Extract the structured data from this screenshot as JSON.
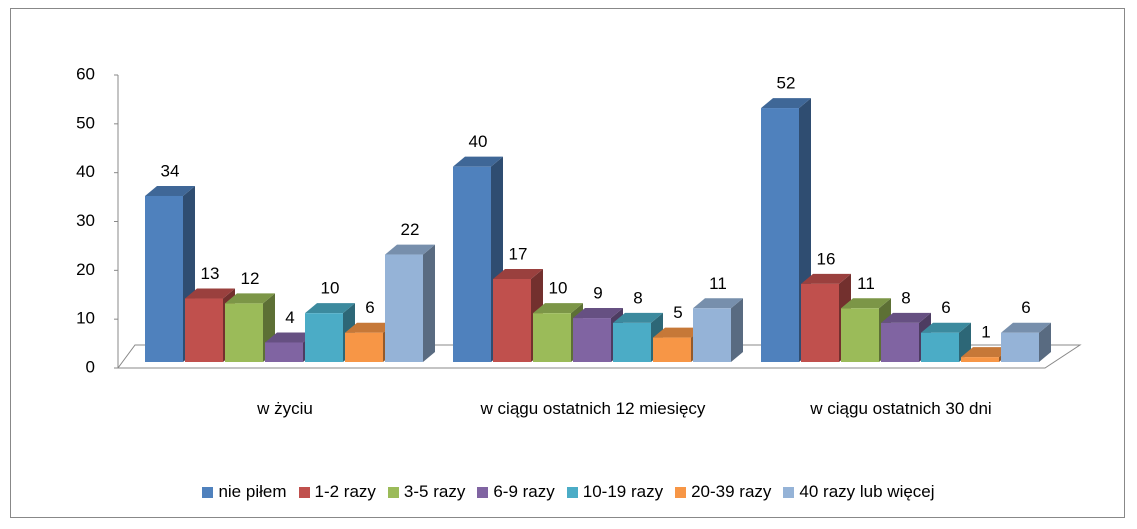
{
  "chart_data": {
    "type": "bar3d",
    "categories": [
      "w życiu",
      "w ciągu ostatnich 12 miesięcy",
      "w ciągu ostatnich 30 dni"
    ],
    "series": [
      {
        "name": "nie piłem",
        "color": "#4f81bd",
        "values": [
          34,
          40,
          52
        ]
      },
      {
        "name": "1-2 razy",
        "color": "#c0504d",
        "values": [
          13,
          17,
          16
        ]
      },
      {
        "name": "3-5 razy",
        "color": "#9bbb59",
        "values": [
          12,
          10,
          11
        ]
      },
      {
        "name": "6-9 razy",
        "color": "#8064a2",
        "values": [
          4,
          9,
          8
        ]
      },
      {
        "name": "10-19 razy",
        "color": "#4bacc6",
        "values": [
          10,
          8,
          6
        ]
      },
      {
        "name": "20-39 razy",
        "color": "#f79646",
        "values": [
          6,
          5,
          1
        ]
      },
      {
        "name": "40 razy lub więcej",
        "color": "#95b3d7",
        "values": [
          22,
          11,
          6
        ]
      }
    ],
    "ylim": [
      0,
      60
    ],
    "yticks": [
      0,
      10,
      20,
      30,
      40,
      50,
      60
    ],
    "grid": false,
    "legend": "bottom"
  }
}
